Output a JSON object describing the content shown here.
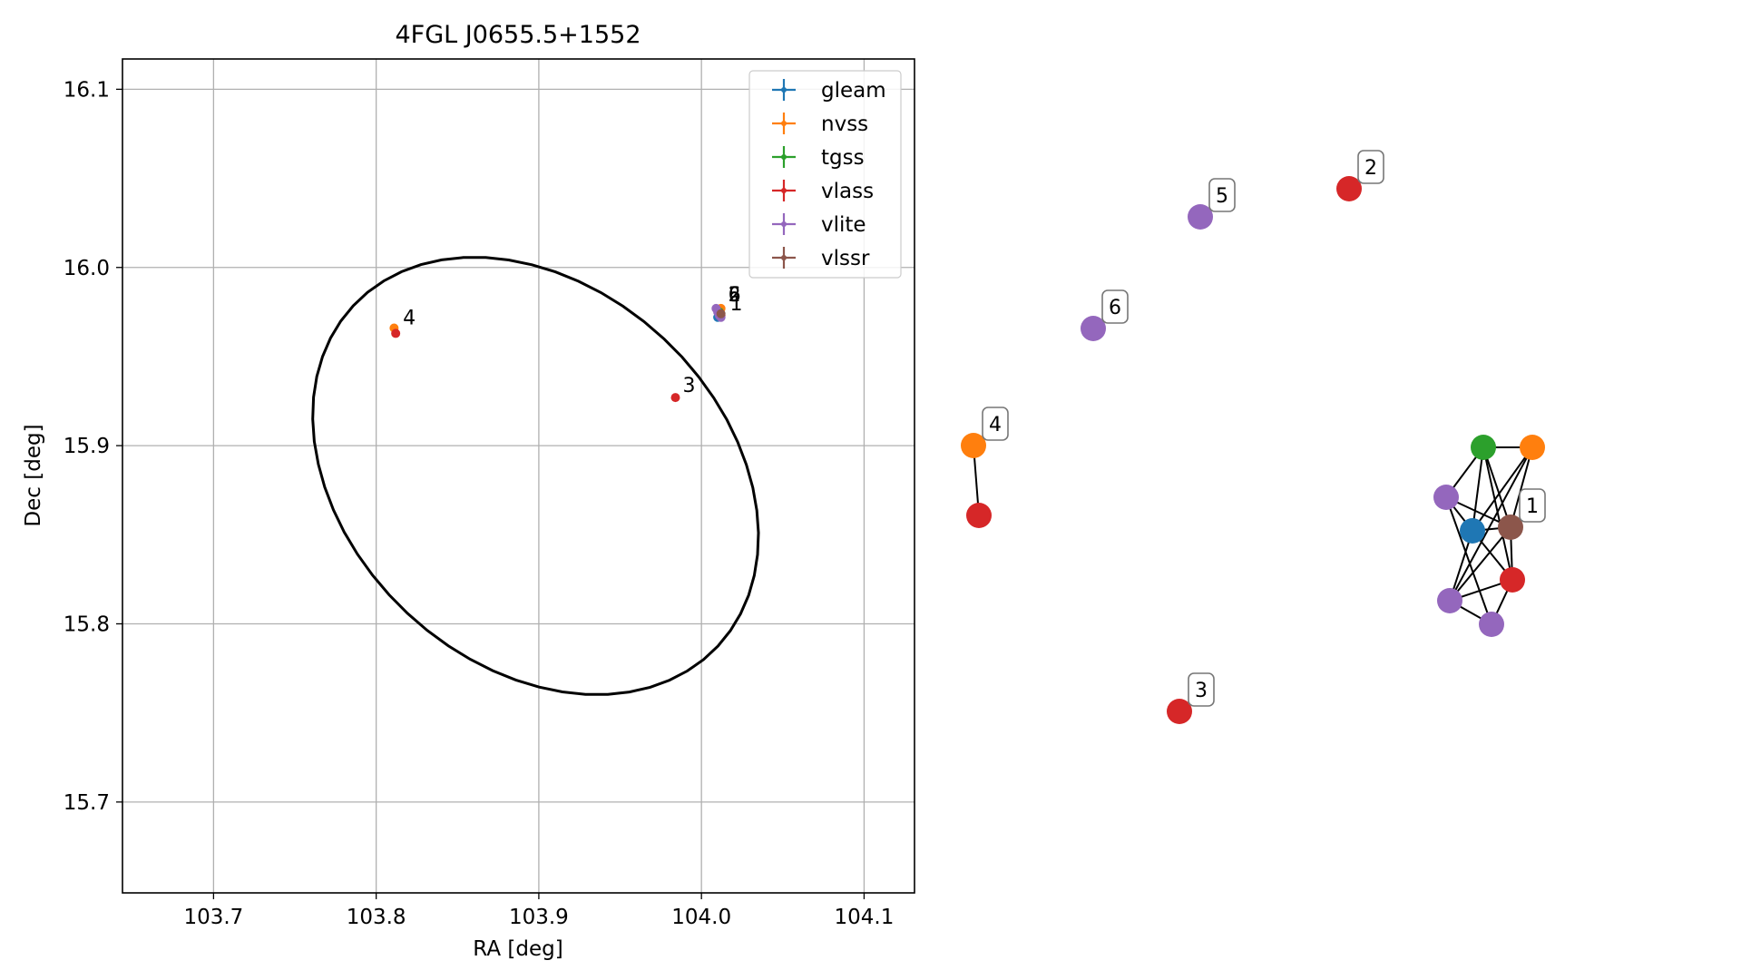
{
  "chart_data": [
    {
      "type": "scatter",
      "title": "4FGL J0655.5+1552",
      "xlabel": "RA [deg]",
      "ylabel": "Dec [deg]",
      "xlim": [
        103.644,
        104.131
      ],
      "ylim": [
        15.649,
        16.117
      ],
      "xticks": [
        103.7,
        103.8,
        103.9,
        104.0,
        104.1
      ],
      "xtick_labels": [
        "103.7",
        "103.8",
        "103.9",
        "104.0",
        "104.1"
      ],
      "yticks": [
        15.7,
        15.8,
        15.9,
        16.0,
        16.1
      ],
      "ytick_labels": [
        "15.7",
        "15.8",
        "15.9",
        "16.0",
        "16.1"
      ],
      "grid": true,
      "legend_position": "upper-right",
      "series": [
        {
          "name": "gleam",
          "color": "#1f77b4",
          "points": [
            {
              "x": 104.01,
              "y": 15.972
            }
          ]
        },
        {
          "name": "nvss",
          "color": "#ff7f0e",
          "points": [
            {
              "x": 104.012,
              "y": 15.977
            },
            {
              "x": 103.811,
              "y": 15.966
            }
          ]
        },
        {
          "name": "tgss",
          "color": "#2ca02c",
          "points": [
            {
              "x": 104.011,
              "y": 15.975
            }
          ]
        },
        {
          "name": "vlass",
          "color": "#d62728",
          "points": [
            {
              "x": 104.012,
              "y": 15.973
            },
            {
              "x": 103.812,
              "y": 15.963
            },
            {
              "x": 103.984,
              "y": 15.927
            }
          ]
        },
        {
          "name": "vlite",
          "color": "#9467bd",
          "points": [
            {
              "x": 104.009,
              "y": 15.977
            },
            {
              "x": 104.01,
              "y": 15.975
            },
            {
              "x": 104.011,
              "y": 15.973
            },
            {
              "x": 104.012,
              "y": 15.972
            }
          ]
        },
        {
          "name": "vlssr",
          "color": "#8c564b",
          "points": [
            {
              "x": 104.012,
              "y": 15.974
            }
          ]
        }
      ],
      "ellipse": {
        "center": [
          103.898,
          15.883
        ],
        "width": 0.231,
        "height": 0.28,
        "angle": 47,
        "color": "#000000"
      },
      "annotations": [
        {
          "text": "4",
          "x": 103.812,
          "y": 15.965
        },
        {
          "text": "3",
          "x": 103.984,
          "y": 15.927
        },
        {
          "text": "1",
          "x": 104.013,
          "y": 15.973
        },
        {
          "text": "2",
          "x": 104.012,
          "y": 15.978
        },
        {
          "text": "5",
          "x": 104.012,
          "y": 15.978
        },
        {
          "text": "6",
          "x": 104.012,
          "y": 15.978
        }
      ]
    },
    {
      "type": "network-graph",
      "node_colors": {
        "gleam": "#1f77b4",
        "nvss": "#ff7f0e",
        "tgss": "#2ca02c",
        "vlass": "#d62728",
        "vlite": "#9467bd",
        "vlssr": "#8c564b"
      },
      "nodes": [
        {
          "id": "n_o4",
          "survey": "nvss"
        },
        {
          "id": "n_r4",
          "survey": "vlass"
        },
        {
          "id": "n_r3",
          "survey": "vlass"
        },
        {
          "id": "n_p6",
          "survey": "vlite"
        },
        {
          "id": "n_p5",
          "survey": "vlite"
        },
        {
          "id": "n_r2",
          "survey": "vlass"
        },
        {
          "id": "n_g1",
          "survey": "tgss"
        },
        {
          "id": "n_o1",
          "survey": "nvss"
        },
        {
          "id": "n_pa",
          "survey": "vlite"
        },
        {
          "id": "n_b1",
          "survey": "gleam"
        },
        {
          "id": "n_br",
          "survey": "vlssr"
        },
        {
          "id": "n_r1",
          "survey": "vlass"
        },
        {
          "id": "n_pb",
          "survey": "vlite"
        },
        {
          "id": "n_pc",
          "survey": "vlite"
        }
      ],
      "edges": [
        [
          "n_o4",
          "n_r4"
        ],
        [
          "n_g1",
          "n_o1"
        ],
        [
          "n_g1",
          "n_pa"
        ],
        [
          "n_g1",
          "n_b1"
        ],
        [
          "n_g1",
          "n_br"
        ],
        [
          "n_g1",
          "n_r1"
        ],
        [
          "n_o1",
          "n_b1"
        ],
        [
          "n_o1",
          "n_br"
        ],
        [
          "n_o1",
          "n_pb"
        ],
        [
          "n_pa",
          "n_b1"
        ],
        [
          "n_pa",
          "n_br"
        ],
        [
          "n_pa",
          "n_pc"
        ],
        [
          "n_b1",
          "n_br"
        ],
        [
          "n_b1",
          "n_r1"
        ],
        [
          "n_b1",
          "n_pb"
        ],
        [
          "n_br",
          "n_r1"
        ],
        [
          "n_br",
          "n_pb"
        ],
        [
          "n_r1",
          "n_pb"
        ],
        [
          "n_r1",
          "n_pc"
        ],
        [
          "n_pb",
          "n_pc"
        ]
      ],
      "labels": [
        {
          "text": "1",
          "node": "n_br"
        },
        {
          "text": "2",
          "node": "n_r2"
        },
        {
          "text": "3",
          "node": "n_r3"
        },
        {
          "text": "4",
          "node": "n_o4"
        },
        {
          "text": "5",
          "node": "n_p5"
        },
        {
          "text": "6",
          "node": "n_p6"
        }
      ]
    }
  ]
}
